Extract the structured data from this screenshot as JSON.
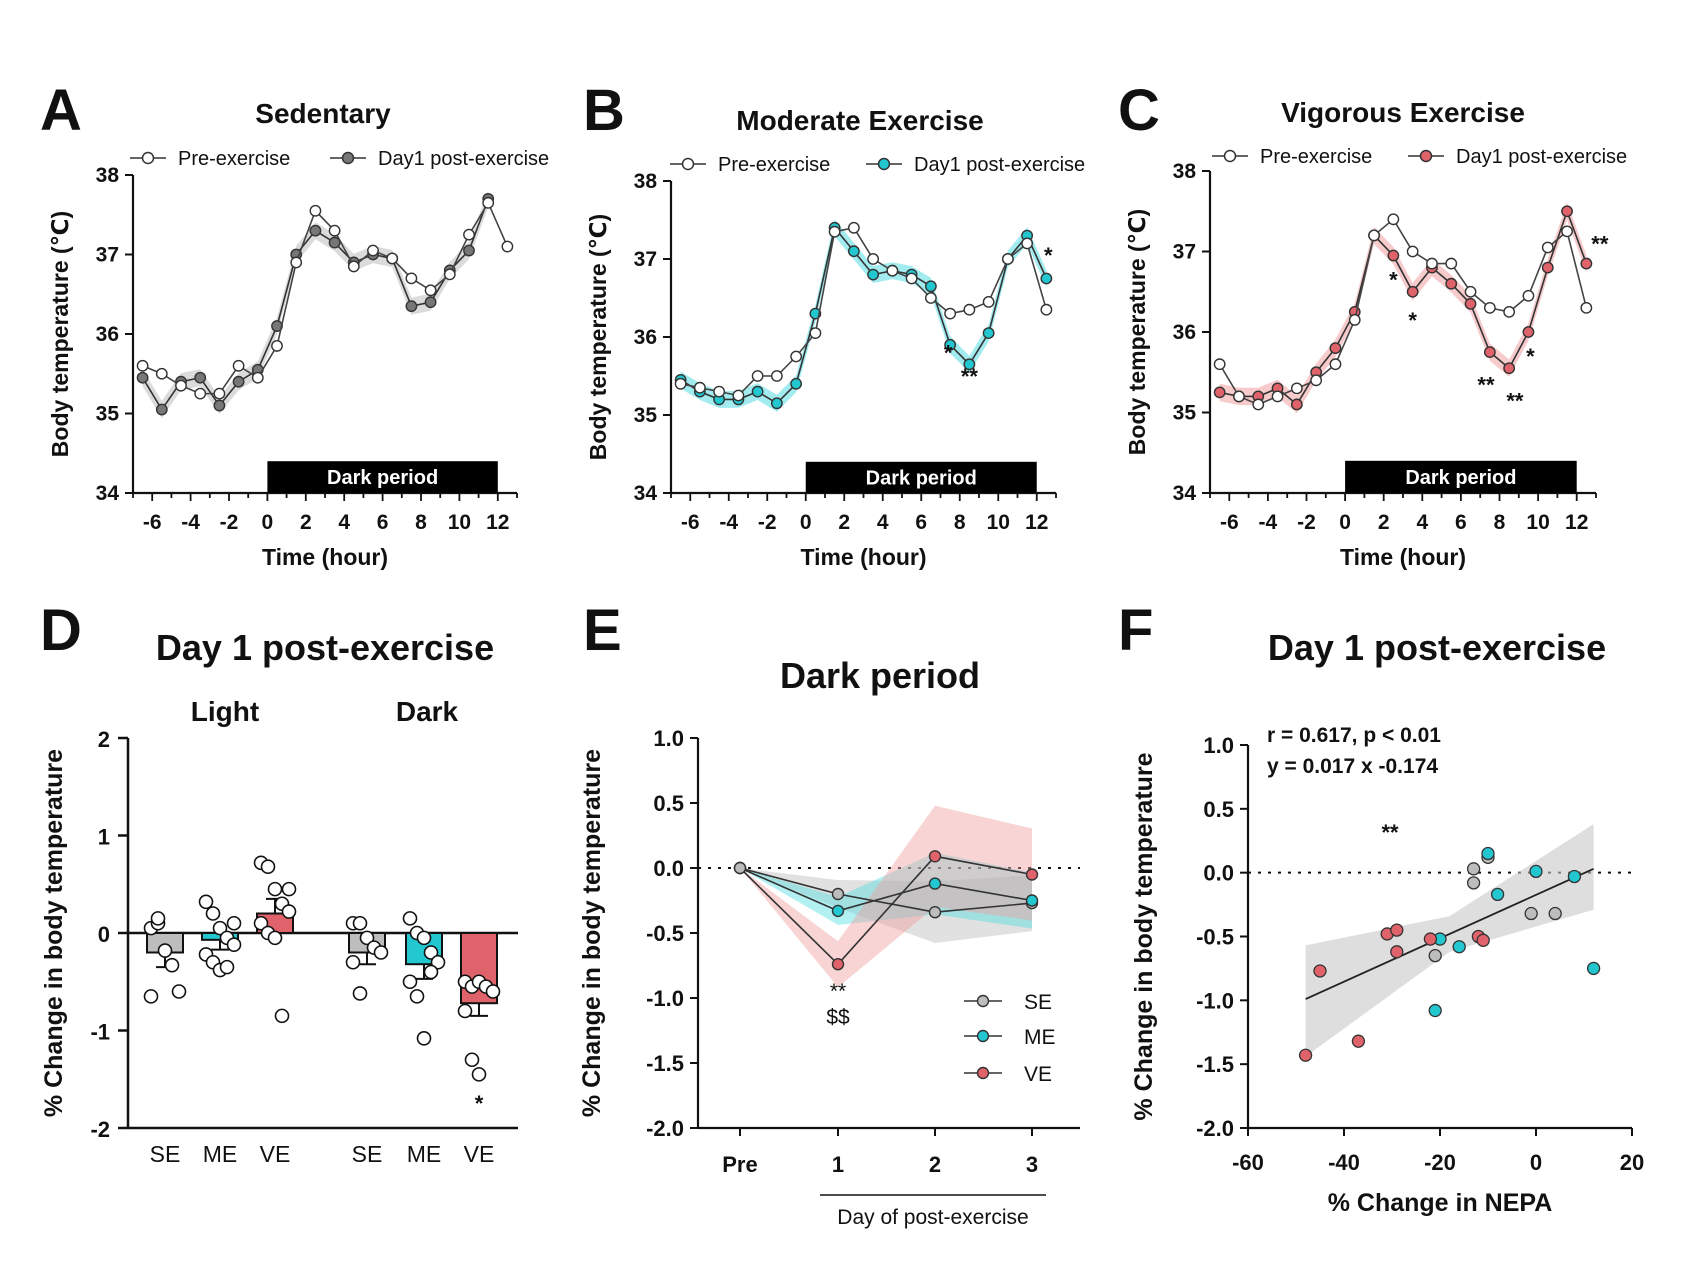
{
  "colors": {
    "pre": "#ffffff",
    "sedentary": "#777777",
    "moderate": "#22c7cf",
    "vigorous": "#e0636b",
    "band_se": "#bdbdbd",
    "band_me": "#55dde3",
    "band_ve": "#f0a0a0",
    "dark": "#000000"
  },
  "panels": {
    "A": {
      "letter": "A"
    },
    "B": {
      "letter": "B"
    },
    "C": {
      "letter": "C"
    },
    "D": {
      "letter": "D"
    },
    "E": {
      "letter": "E"
    },
    "F": {
      "letter": "F"
    }
  },
  "chart_data": [
    {
      "id": "A",
      "type": "line",
      "title": "Sedentary",
      "xlabel": "Time (hour)",
      "ylabel": "Body temperature (℃)",
      "xlim": [
        -7,
        13
      ],
      "ylim": [
        34,
        38
      ],
      "xticks": [
        -6,
        -4,
        -2,
        0,
        2,
        4,
        6,
        8,
        10,
        12
      ],
      "yticks": [
        34,
        35,
        36,
        37,
        38
      ],
      "dark_period": {
        "label": "Dark period",
        "start": 0,
        "end": 12
      },
      "legend": [
        "Pre-exercise",
        "Day1 post-exercise"
      ],
      "series": [
        {
          "name": "Pre-exercise",
          "color": "pre",
          "x": [
            -6.5,
            -5.5,
            -4.5,
            -3.5,
            -2.5,
            -1.5,
            -0.5,
            0.5,
            1.5,
            2.5,
            3.5,
            4.5,
            5.5,
            6.5,
            7.5,
            8.5,
            9.5,
            10.5,
            11.5,
            12.5
          ],
          "y": [
            35.6,
            35.5,
            35.35,
            35.25,
            35.25,
            35.6,
            35.45,
            35.85,
            36.9,
            37.55,
            37.3,
            36.85,
            37.05,
            36.95,
            36.7,
            36.55,
            36.75,
            37.25,
            37.65,
            37.1
          ]
        },
        {
          "name": "Day1 post-exercise",
          "color": "sedentary",
          "band": "band_se",
          "x": [
            -6.5,
            -5.5,
            -4.5,
            -3.5,
            -2.5,
            -1.5,
            -0.5,
            0.5,
            1.5,
            2.5,
            3.5,
            4.5,
            5.5,
            6.5,
            7.5,
            8.5,
            9.5,
            10.5,
            11.5
          ],
          "y": [
            35.45,
            35.05,
            35.4,
            35.45,
            35.1,
            35.4,
            35.55,
            36.1,
            37.0,
            37.3,
            37.15,
            36.9,
            37.0,
            36.95,
            36.35,
            36.4,
            36.8,
            37.05,
            37.7
          ]
        }
      ],
      "annotations": []
    },
    {
      "id": "B",
      "type": "line",
      "title": "Moderate Exercise",
      "xlabel": "Time (hour)",
      "ylabel": "Body temperature (℃)",
      "xlim": [
        -7,
        13
      ],
      "ylim": [
        34,
        38
      ],
      "xticks": [
        -6,
        -4,
        -2,
        0,
        2,
        4,
        6,
        8,
        10,
        12
      ],
      "yticks": [
        34,
        35,
        36,
        37,
        38
      ],
      "dark_period": {
        "label": "Dark period",
        "start": 0,
        "end": 12
      },
      "legend": [
        "Pre-exercise",
        "Day1 post-exercise"
      ],
      "series": [
        {
          "name": "Pre-exercise",
          "color": "pre",
          "x": [
            -6.5,
            -5.5,
            -4.5,
            -3.5,
            -2.5,
            -1.5,
            -0.5,
            0.5,
            1.5,
            2.5,
            3.5,
            4.5,
            5.5,
            6.5,
            7.5,
            8.5,
            9.5,
            10.5,
            11.5,
            12.5
          ],
          "y": [
            35.4,
            35.35,
            35.3,
            35.25,
            35.5,
            35.5,
            35.75,
            36.05,
            37.35,
            37.4,
            37.0,
            36.85,
            36.75,
            36.5,
            36.3,
            36.35,
            36.45,
            37.0,
            37.2,
            36.35
          ]
        },
        {
          "name": "Day1 post-exercise",
          "color": "moderate",
          "band": "band_me",
          "x": [
            -6.5,
            -5.5,
            -4.5,
            -3.5,
            -2.5,
            -1.5,
            -0.5,
            0.5,
            1.5,
            2.5,
            3.5,
            4.5,
            5.5,
            6.5,
            7.5,
            8.5,
            9.5,
            10.5,
            11.5,
            12.5
          ],
          "y": [
            35.45,
            35.3,
            35.2,
            35.2,
            35.3,
            35.15,
            35.4,
            36.3,
            37.4,
            37.1,
            36.8,
            36.85,
            36.8,
            36.65,
            35.9,
            35.65,
            36.05,
            37.0,
            37.3,
            36.75
          ]
        }
      ],
      "annotations": [
        {
          "text": "*",
          "x": 7.4,
          "y": 35.7
        },
        {
          "text": "**",
          "x": 8.5,
          "y": 35.4
        },
        {
          "text": "*",
          "x": 12.6,
          "y": 36.95
        }
      ]
    },
    {
      "id": "C",
      "type": "line",
      "title": "Vigorous Exercise",
      "xlabel": "Time (hour)",
      "ylabel": "Body temperature (℃)",
      "xlim": [
        -7,
        13
      ],
      "ylim": [
        34,
        38
      ],
      "xticks": [
        -6,
        -4,
        -2,
        0,
        2,
        4,
        6,
        8,
        10,
        12
      ],
      "yticks": [
        34,
        35,
        36,
        37,
        38
      ],
      "dark_period": {
        "label": "Dark period",
        "start": 0,
        "end": 12
      },
      "legend": [
        "Pre-exercise",
        "Day1 post-exercise"
      ],
      "series": [
        {
          "name": "Pre-exercise",
          "color": "pre",
          "x": [
            -6.5,
            -5.5,
            -4.5,
            -3.5,
            -2.5,
            -1.5,
            -0.5,
            0.5,
            1.5,
            2.5,
            3.5,
            4.5,
            5.5,
            6.5,
            7.5,
            8.5,
            9.5,
            10.5,
            11.5,
            12.5
          ],
          "y": [
            35.6,
            35.2,
            35.1,
            35.2,
            35.3,
            35.4,
            35.6,
            36.15,
            37.2,
            37.4,
            37.0,
            36.85,
            36.85,
            36.5,
            36.3,
            36.25,
            36.45,
            37.05,
            37.25,
            36.3
          ]
        },
        {
          "name": "Day1 post-exercise",
          "color": "vigorous",
          "band": "band_ve",
          "x": [
            -6.5,
            -5.5,
            -4.5,
            -3.5,
            -2.5,
            -1.5,
            -0.5,
            0.5,
            1.5,
            2.5,
            3.5,
            4.5,
            5.5,
            6.5,
            7.5,
            8.5,
            9.5,
            10.5,
            11.5,
            12.5
          ],
          "y": [
            35.25,
            35.2,
            35.2,
            35.3,
            35.1,
            35.5,
            35.8,
            36.25,
            37.2,
            36.95,
            36.5,
            36.8,
            36.6,
            36.35,
            35.75,
            35.55,
            36.0,
            36.8,
            37.5,
            36.85
          ]
        }
      ],
      "annotations": [
        {
          "text": "*",
          "x": 2.5,
          "y": 36.55
        },
        {
          "text": "*",
          "x": 3.5,
          "y": 36.05
        },
        {
          "text": "*",
          "x": 9.6,
          "y": 35.6
        },
        {
          "text": "**",
          "x": 7.3,
          "y": 35.25
        },
        {
          "text": "**",
          "x": 8.8,
          "y": 35.05
        },
        {
          "text": "**",
          "x": 13.2,
          "y": 37.0
        }
      ]
    },
    {
      "id": "D",
      "type": "bar",
      "title": "Day 1 post-exercise",
      "ylabel": "% Change in body temperature",
      "ylim": [
        -2,
        2
      ],
      "yticks": [
        -2,
        -1,
        0,
        1,
        2
      ],
      "groups": [
        "Light",
        "Dark"
      ],
      "categories": [
        "SE",
        "ME",
        "VE",
        "SE",
        "ME",
        "VE"
      ],
      "bar_colors": [
        "band_se",
        "moderate",
        "vigorous",
        "band_se",
        "moderate",
        "vigorous"
      ],
      "values": [
        -0.2,
        -0.07,
        0.2,
        -0.2,
        -0.32,
        -0.72
      ],
      "errors": [
        0.15,
        0.1,
        0.15,
        0.12,
        0.15,
        0.13
      ],
      "points": [
        [
          0.05,
          0.1,
          -0.18,
          -0.33,
          -0.6,
          -0.65,
          0.15
        ],
        [
          0.32,
          0.2,
          0.05,
          -0.05,
          -0.12,
          -0.22,
          -0.3,
          -0.38,
          -0.35,
          0.1
        ],
        [
          0.72,
          0.68,
          0.45,
          0.3,
          0.22,
          0.1,
          0.0,
          -0.05,
          -0.85,
          0.45
        ],
        [
          0.1,
          0.1,
          -0.05,
          -0.15,
          -0.2,
          -0.3,
          -0.62
        ],
        [
          0.15,
          0.0,
          -0.05,
          -0.2,
          -0.3,
          -0.5,
          -0.65,
          -1.08,
          -0.4
        ],
        [
          -0.5,
          -0.55,
          -0.5,
          -0.55,
          -0.6,
          -0.8,
          -1.3,
          -1.45
        ]
      ],
      "annotations": [
        {
          "text": "*",
          "category_index": 5,
          "y": -1.7
        }
      ]
    },
    {
      "id": "E",
      "type": "line",
      "title": "Dark period",
      "xlabel": "Day of post-exercise",
      "ylabel": "% Change in body temperature",
      "categories": [
        "Pre",
        "1",
        "2",
        "3"
      ],
      "ylim": [
        -2.0,
        1.0
      ],
      "yticks": [
        -2.0,
        -1.5,
        -1.0,
        -0.5,
        0.0,
        0.5,
        1.0
      ],
      "legend": [
        "SE",
        "ME",
        "VE"
      ],
      "series": [
        {
          "name": "SE",
          "color": "sedentary",
          "band": "band_se",
          "values": [
            0,
            -0.2,
            -0.34,
            -0.27
          ]
        },
        {
          "name": "ME",
          "color": "moderate",
          "band": "band_me",
          "values": [
            0,
            -0.33,
            -0.12,
            -0.25
          ]
        },
        {
          "name": "VE",
          "color": "vigorous",
          "band": "band_ve",
          "values": [
            0,
            -0.74,
            0.09,
            -0.05
          ]
        }
      ],
      "annotations": [
        {
          "text": "**",
          "category_index": 1,
          "y": -1.0
        },
        {
          "text": "$$",
          "category_index": 1,
          "y": -1.2
        }
      ]
    },
    {
      "id": "F",
      "type": "scatter",
      "title": "Day 1 post-exercise",
      "xlabel": "% Change in NEPA",
      "ylabel": "% Change in body temperature",
      "xlim": [
        -60,
        20
      ],
      "ylim": [
        -2.0,
        1.0
      ],
      "xticks": [
        -60,
        -40,
        -20,
        0,
        20
      ],
      "yticks": [
        -2.0,
        -1.5,
        -1.0,
        -0.5,
        0.0,
        0.5,
        1.0
      ],
      "stats": [
        "r = 0.617, p < 0.01",
        "y = 0.017 x -0.174"
      ],
      "significance": "**",
      "fit": {
        "slope": 0.017,
        "intercept": -0.174,
        "x_range": [
          -48,
          12
        ]
      },
      "series": [
        {
          "name": "SE",
          "color": "band_se",
          "points": [
            [
              -13,
              0.03
            ],
            [
              -13,
              -0.08
            ],
            [
              -10,
              0.12
            ],
            [
              -21,
              -0.65
            ],
            [
              -1,
              -0.32
            ],
            [
              4,
              -0.32
            ]
          ]
        },
        {
          "name": "ME",
          "color": "moderate",
          "points": [
            [
              -10,
              0.15
            ],
            [
              -8,
              -0.17
            ],
            [
              0,
              0.01
            ],
            [
              8,
              -0.03
            ],
            [
              -20,
              -0.52
            ],
            [
              -16,
              -0.58
            ],
            [
              -21,
              -1.08
            ],
            [
              12,
              -0.75
            ]
          ]
        },
        {
          "name": "VE",
          "color": "vigorous",
          "points": [
            [
              -45,
              -0.77
            ],
            [
              -48,
              -1.43
            ],
            [
              -37,
              -1.32
            ],
            [
              -31,
              -0.48
            ],
            [
              -29,
              -0.45
            ],
            [
              -29,
              -0.62
            ],
            [
              -22,
              -0.52
            ],
            [
              -12,
              -0.5
            ],
            [
              -11,
              -0.53
            ]
          ]
        }
      ]
    }
  ]
}
